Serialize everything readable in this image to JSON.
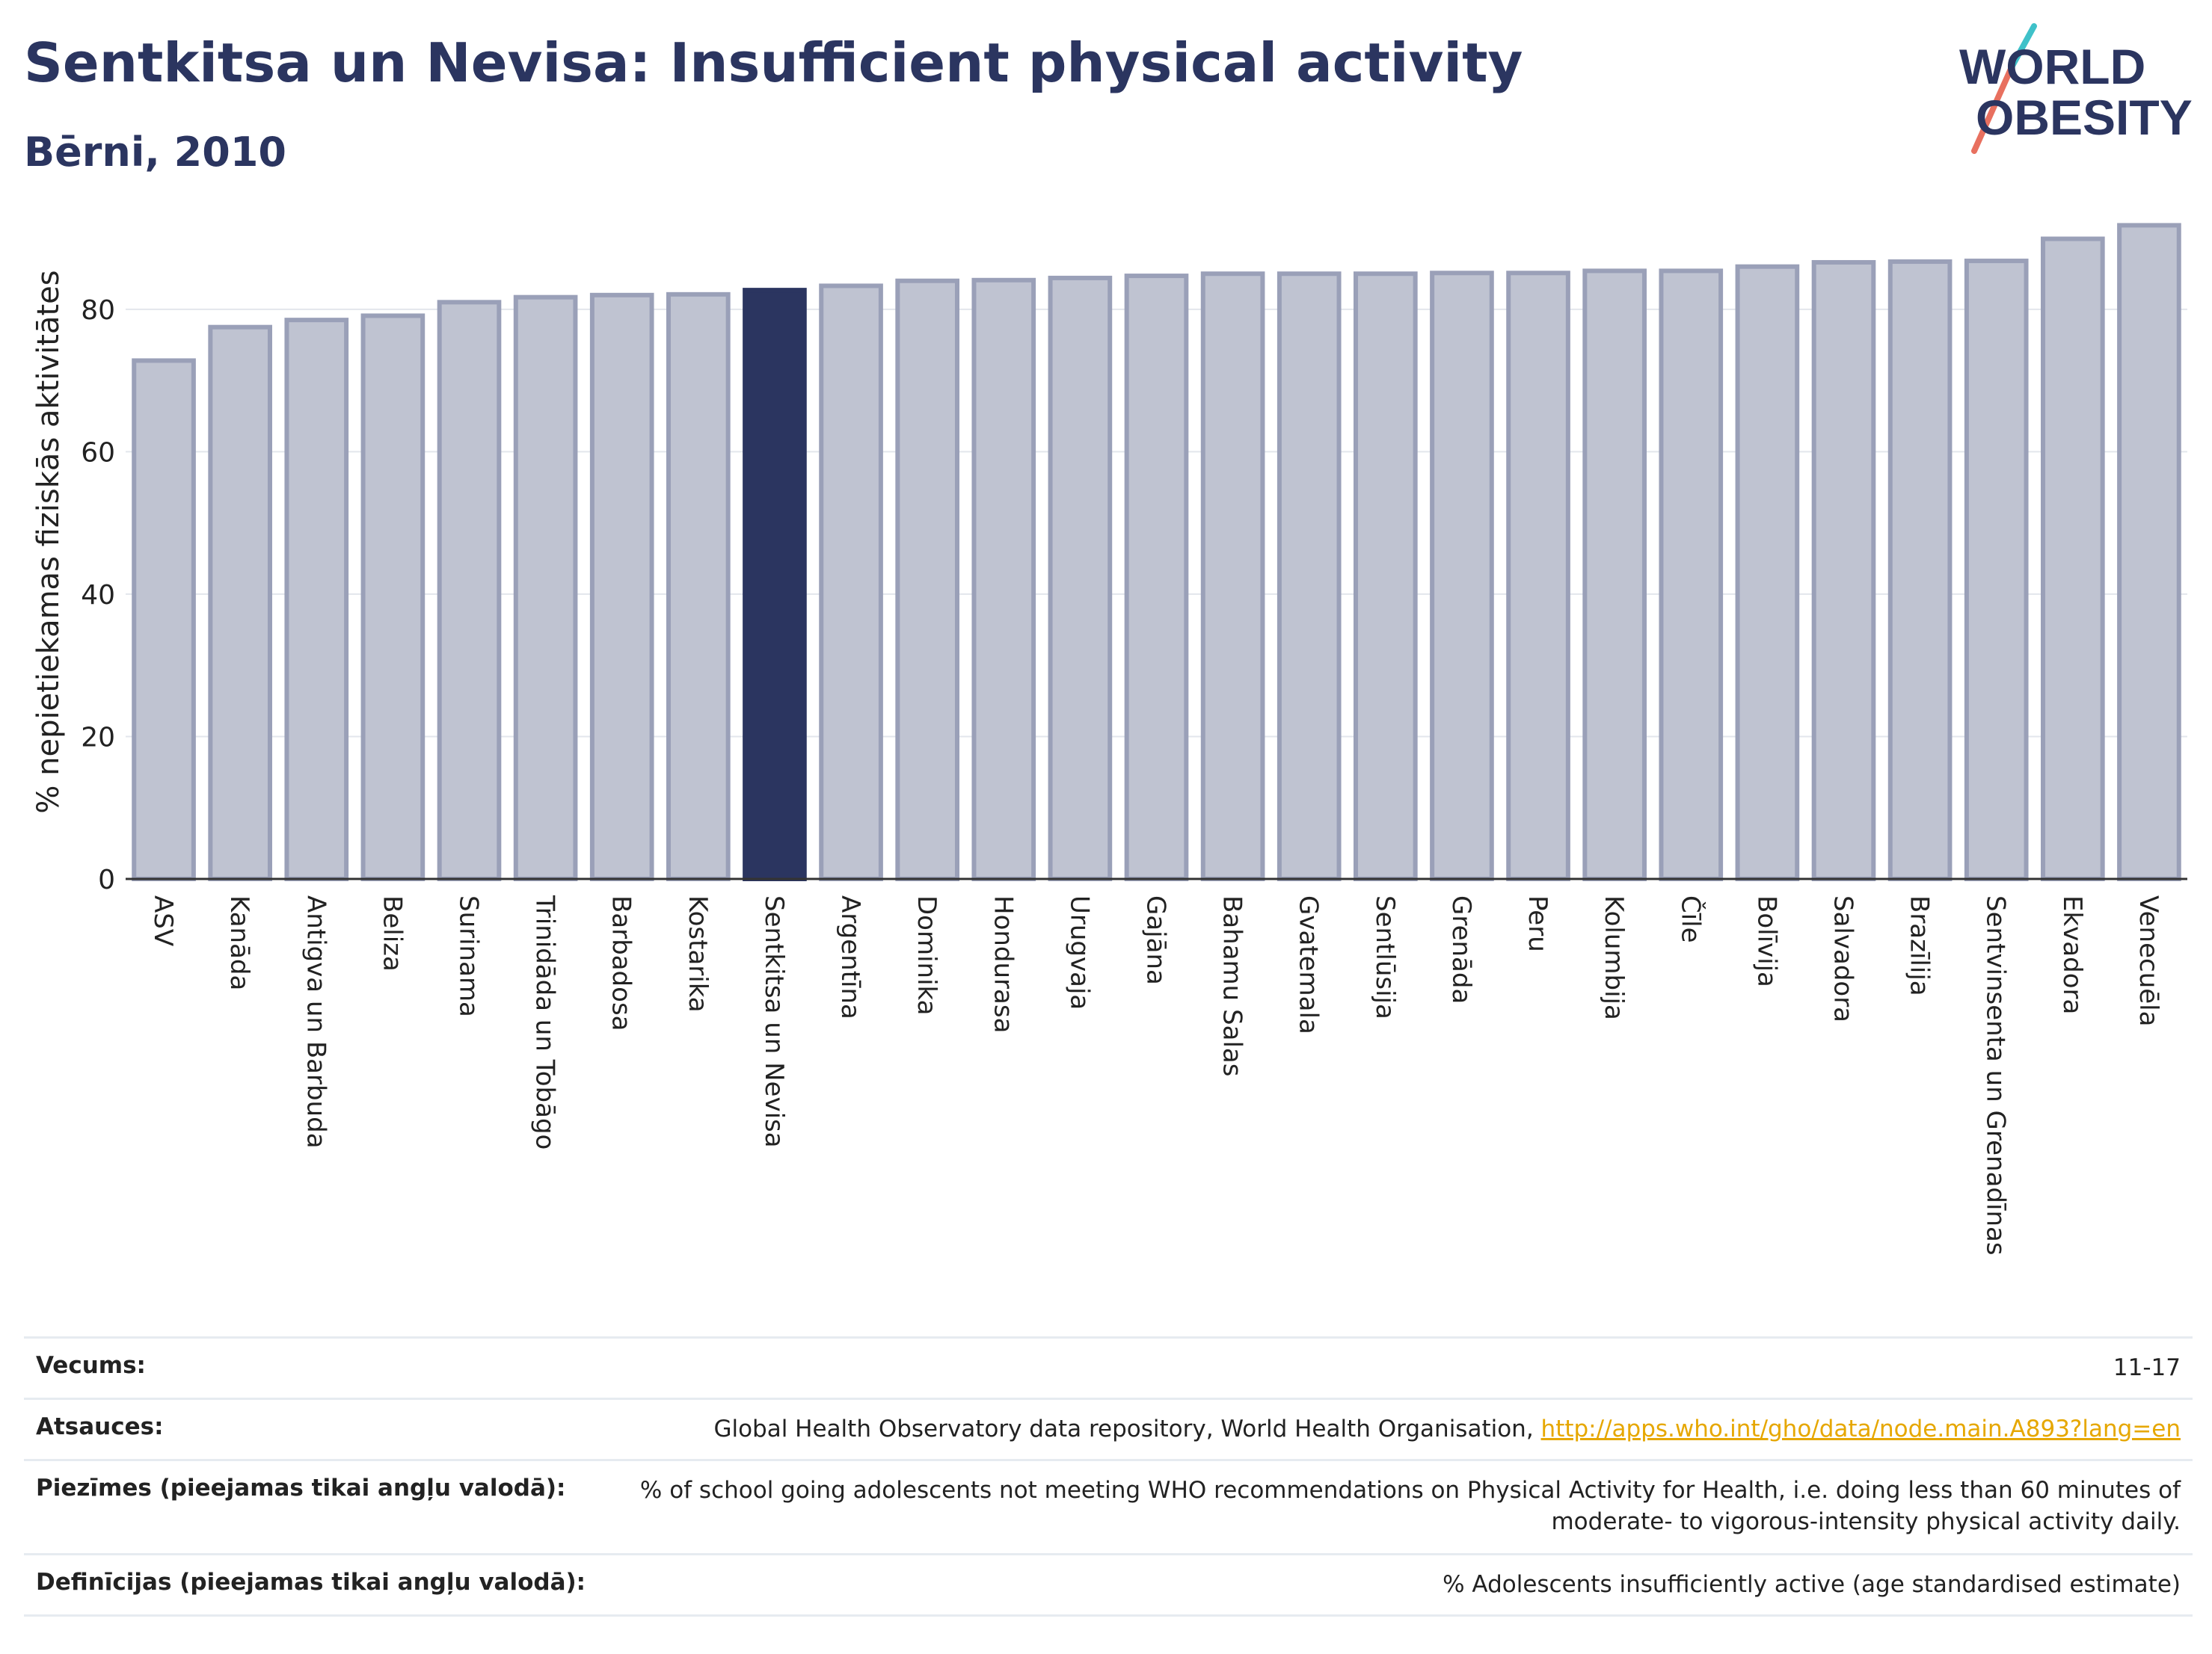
{
  "header": {
    "title": "Sentkitsa un Nevisa: Insufficient physical activity",
    "subtitle": "Bērni, 2010"
  },
  "logo": {
    "line1": "WORLD",
    "line2": "OBESITY",
    "colors": {
      "text": "#2b3560",
      "slash_teal": "#3fc1c9",
      "slash_coral": "#e8705f"
    }
  },
  "chart_data": {
    "type": "bar",
    "ylabel": "% nepietiekamas fiziskās aktivitātes",
    "xlabel": "",
    "ylim": [
      0,
      93
    ],
    "yticks": [
      0,
      20,
      40,
      60,
      80
    ],
    "grid": true,
    "highlight": "Sentkitsa un Nevisa",
    "colors": {
      "bar": "#bfc3d1",
      "bar_edge": "#9aa0b8",
      "highlight": "#2b3560"
    },
    "categories": [
      "ASV",
      "Kanāda",
      "Antigva un Barbuda",
      "Beliza",
      "Surinama",
      "Trinidāda un Tobāgo",
      "Barbadosa",
      "Kostarika",
      "Sentkitsa un Nevisa",
      "Argentīna",
      "Dominika",
      "Hondurasa",
      "Urugvaja",
      "Gajāna",
      "Bahamu Salas",
      "Gvatemala",
      "Sentlūsija",
      "Grenāda",
      "Peru",
      "Kolumbija",
      "Čīle",
      "Bolīvija",
      "Salvadora",
      "Brazīlija",
      "Sentvinsenta un Grenadīnas",
      "Ekvadora",
      "Venecuēla"
    ],
    "values": [
      72.8,
      77.5,
      78.5,
      79.1,
      81.0,
      81.7,
      82.0,
      82.1,
      82.7,
      83.3,
      84.0,
      84.1,
      84.4,
      84.7,
      85.0,
      85.0,
      85.0,
      85.1,
      85.1,
      85.4,
      85.4,
      86.0,
      86.6,
      86.7,
      86.8,
      89.9,
      91.8
    ]
  },
  "footer": {
    "rows": [
      {
        "label": "Vecums:",
        "value": "11-17"
      },
      {
        "label": "Atsauces:",
        "value": "Global Health Observatory data repository, World Health Organisation, ",
        "link": "http://apps.who.int/gho/data/node.main.A893?lang=en"
      },
      {
        "label": "Piezīmes (pieejamas tikai angļu valodā):",
        "value": "% of school going adolescents not meeting WHO recommendations on Physical Activity for Health, i.e. doing less than 60 minutes of moderate- to vigorous-intensity physical activity daily."
      },
      {
        "label": "Definīcijas (pieejamas tikai angļu valodā):",
        "value": "% Adolescents insufficiently active (age standardised estimate)"
      }
    ]
  }
}
